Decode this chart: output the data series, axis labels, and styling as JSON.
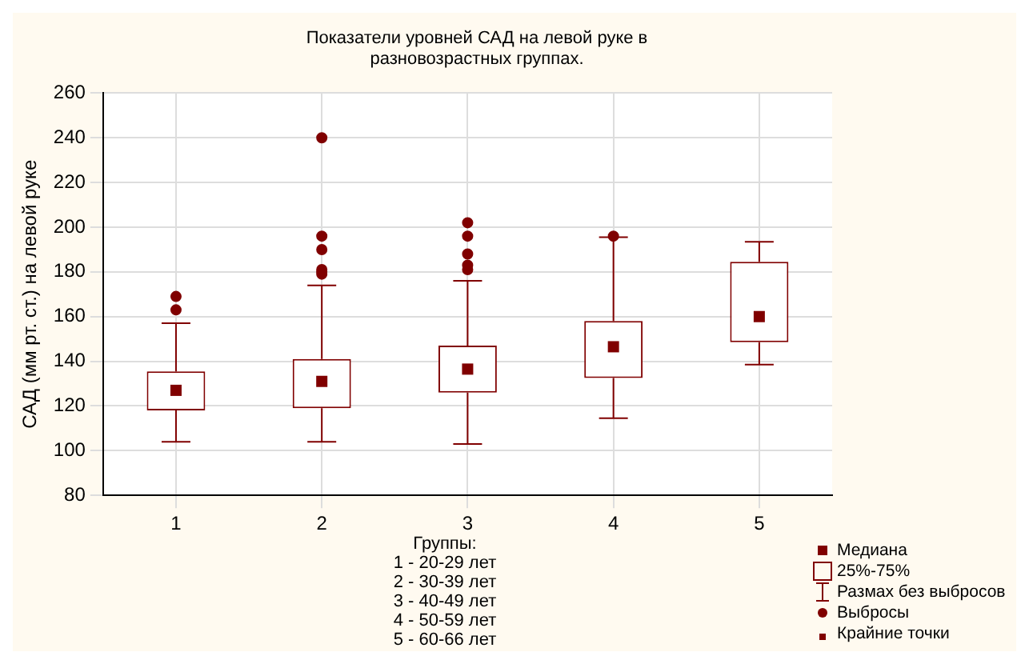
{
  "chart_data": {
    "type": "box",
    "title": "Показатели уровней САД на левой руке в разновозрастных группах.",
    "xlabel": "Группы:",
    "ylabel": "САД (мм рт. ст.) на левой руке",
    "categories": [
      "1",
      "2",
      "3",
      "4",
      "5"
    ],
    "color": "#800000",
    "boxes": [
      {
        "low": 104,
        "q1": 118,
        "median": 127,
        "q3": 135.5,
        "high": 157,
        "outliers": [
          163,
          169
        ]
      },
      {
        "low": 104,
        "q1": 119,
        "median": 131,
        "q3": 141,
        "high": 174,
        "outliers": [
          179,
          180,
          181,
          190,
          196,
          240
        ]
      },
      {
        "low": 103,
        "q1": 126,
        "median": 136.5,
        "q3": 147,
        "high": 176,
        "outliers": [
          181,
          183,
          188,
          196,
          202
        ]
      },
      {
        "low": 114.5,
        "q1": 132.5,
        "median": 146.5,
        "q3": 158,
        "high": 195.5,
        "outliers": [
          196
        ]
      },
      {
        "low": 138.5,
        "q1": 148.5,
        "median": 160,
        "q3": 184.5,
        "high": 193.5
      }
    ],
    "ylim": [
      80,
      260
    ],
    "yticks": [
      80,
      100,
      120,
      140,
      160,
      180,
      200,
      220,
      240,
      260
    ],
    "grid": true,
    "annotations": [
      "1 - 20-29 лет",
      "2 - 30-39 лет",
      "3 - 40-49 лет",
      "4 - 50-59 лет",
      "5 - 60-66 лет",
      "Медиана",
      "25%-75%",
      "Размах без выбросов",
      "Выбросы",
      "Крайние точки"
    ]
  }
}
